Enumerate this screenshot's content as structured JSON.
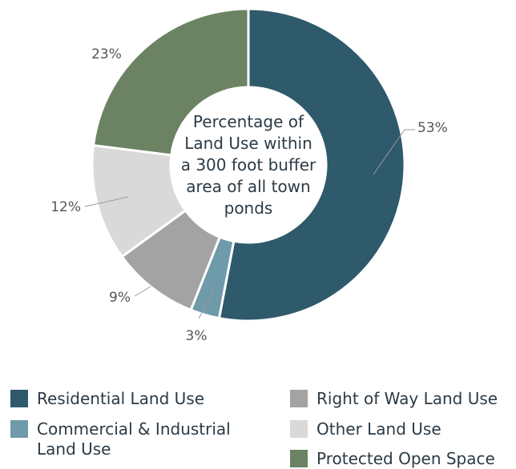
{
  "chart_data": {
    "type": "donut",
    "title": "Percentage of Land Use within a 300 foot buffer area of all town ponds",
    "title_lines": [
      "Percentage of",
      "Land Use within",
      "a 300 foot buffer",
      "area of all town",
      "ponds"
    ],
    "series": [
      {
        "name": "Residential Land Use",
        "value": 53,
        "label": "53%",
        "color": "#2e5a6b"
      },
      {
        "name": "Commercial & Industrial Land Use",
        "value": 3,
        "label": "3%",
        "color": "#6e9aaa"
      },
      {
        "name": "Right of Way Land Use",
        "value": 9,
        "label": "9%",
        "color": "#a3a3a3"
      },
      {
        "name": "Other Land Use",
        "value": 12,
        "label": "12%",
        "color": "#d9d9d9"
      },
      {
        "name": "Protected Open Space",
        "value": 23,
        "label": "23%",
        "color": "#6b8363"
      }
    ]
  },
  "legend": {
    "left": [
      {
        "label_lines": [
          "Residential Land Use"
        ],
        "color": "#2e5a6b"
      },
      {
        "label_lines": [
          "Commercial & Industrial",
          "Land Use"
        ],
        "color": "#6e9aaa"
      }
    ],
    "right": [
      {
        "label_lines": [
          "Right of Way Land Use"
        ],
        "color": "#a3a3a3"
      },
      {
        "label_lines": [
          "Other Land Use"
        ],
        "color": "#d9d9d9"
      },
      {
        "label_lines": [
          "Protected Open Space"
        ],
        "color": "#6b8363"
      }
    ]
  }
}
